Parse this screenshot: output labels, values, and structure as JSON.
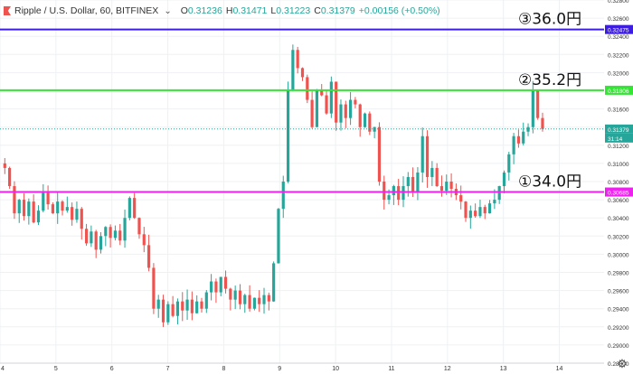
{
  "header": {
    "symbol_text": "Ripple / U.S. Dollar, 60, BITFINEX",
    "chevron": "⌄",
    "o_key": "O",
    "o_val": "0.31236",
    "h_key": "H",
    "h_val": "0.31471",
    "l_key": "L",
    "l_val": "0.31223",
    "c_key": "C",
    "c_val": "0.31379",
    "change": "+0.00156 (+0.50%)"
  },
  "annotations": [
    {
      "text": "③36.0円",
      "price": 0.32475,
      "color": "#3d1de0"
    },
    {
      "text": "②35.2円",
      "price": 0.31806,
      "color": "#33e633"
    },
    {
      "text": "①34.0円",
      "price": 0.30685,
      "color": "#ee22ee"
    }
  ],
  "colors": {
    "up": "#26a69a",
    "down": "#ef5350",
    "grid": "#eef1f4",
    "axis_text": "#333333"
  },
  "icons": {
    "settings": "gear-icon",
    "symbol_flag": "red-flag-icon"
  },
  "chart_data": {
    "type": "candlestick",
    "title": "Ripple / U.S. Dollar, 60, BITFINEX",
    "ylim": [
      0.288,
      0.328
    ],
    "y_ticks": [
      "0.28800",
      "0.29000",
      "0.29200",
      "0.29400",
      "0.29600",
      "0.29800",
      "0.30000",
      "0.30200",
      "0.30400",
      "0.30600",
      "0.30800",
      "0.31000",
      "0.31200",
      "0.31400",
      "0.31600",
      "0.31800",
      "0.32000",
      "0.32200",
      "0.32400",
      "0.32600",
      "0.32800"
    ],
    "x_ticks": [
      "4",
      "5",
      "6",
      "7",
      "8",
      "9",
      "10",
      "11",
      "12",
      "13",
      "14"
    ],
    "x_tick_days": [
      4,
      5,
      6,
      7,
      8,
      9,
      10,
      11,
      12,
      13,
      14
    ],
    "xlim_days": [
      4,
      14.8
    ],
    "price_labels": [
      {
        "text": "0.32475",
        "price": 0.32475,
        "color": "#3d1de0"
      },
      {
        "text": "0.31806",
        "price": 0.31806,
        "color": "#33e633"
      },
      {
        "text": "0.31379",
        "price": 0.31379,
        "color": "#26a69a"
      },
      {
        "text": "31:14",
        "price": 0.31379,
        "color": "#26a69a"
      },
      {
        "text": "0.30685",
        "price": 0.30685,
        "color": "#ee22ee"
      }
    ],
    "current_price": 0.31379,
    "levels": [
      0.32475,
      0.31806,
      0.30685
    ],
    "path": [
      0.31,
      0.3095,
      0.3075,
      0.3045,
      0.306,
      0.3042,
      0.3058,
      0.3035,
      0.3048,
      0.3069,
      0.3055,
      0.3045,
      0.3058,
      0.3048,
      0.3052,
      0.3038,
      0.305,
      0.3028,
      0.3012,
      0.3025,
      0.3005,
      0.302,
      0.303,
      0.3018,
      0.3026,
      0.3015,
      0.304,
      0.3062,
      0.304,
      0.3022,
      0.301,
      0.2985,
      0.294,
      0.295,
      0.2925,
      0.2945,
      0.2932,
      0.2948,
      0.2938,
      0.295,
      0.2935,
      0.2948,
      0.294,
      0.2958,
      0.297,
      0.2958,
      0.2975,
      0.2962,
      0.295,
      0.296,
      0.2945,
      0.2955,
      0.294,
      0.2952,
      0.2945,
      0.2955,
      0.2948,
      0.299,
      0.305,
      0.308,
      0.318,
      0.3225,
      0.3205,
      0.3195,
      0.317,
      0.314,
      0.318,
      0.3175,
      0.3155,
      0.319,
      0.3145,
      0.3165,
      0.315,
      0.317,
      0.3165,
      0.314,
      0.3155,
      0.3135,
      0.314,
      0.308,
      0.306,
      0.3065,
      0.3075,
      0.306,
      0.3075,
      0.3085,
      0.3068,
      0.309,
      0.313,
      0.3085,
      0.3095,
      0.3075,
      0.307,
      0.308,
      0.3072,
      0.3065,
      0.3058,
      0.304,
      0.3048,
      0.3042,
      0.3052,
      0.3045,
      0.3056,
      0.306,
      0.3075,
      0.309,
      0.311,
      0.313,
      0.3122,
      0.3135,
      0.314,
      0.318,
      0.315,
      0.3138
    ]
  }
}
